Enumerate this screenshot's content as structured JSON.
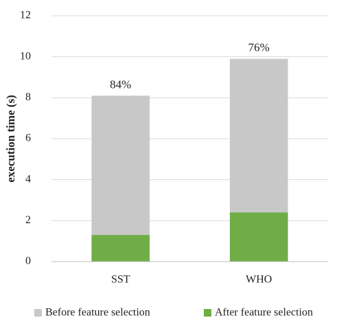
{
  "chart_data": {
    "type": "overlap_bar",
    "ylabel": "execution time (s)",
    "categories": [
      "SST",
      "WHO"
    ],
    "series": [
      {
        "name": "Before feature selection",
        "color": "#c8c8c8",
        "values": [
          8.1,
          9.9
        ]
      },
      {
        "name": "After feature selection",
        "color": "#70ad47",
        "values": [
          1.3,
          2.4
        ]
      }
    ],
    "annotations": [
      "84%",
      "76%"
    ],
    "ylim": [
      0,
      12
    ],
    "yticks": [
      0,
      2,
      4,
      6,
      8,
      10,
      12
    ],
    "grid": true,
    "legend": "bottom"
  }
}
